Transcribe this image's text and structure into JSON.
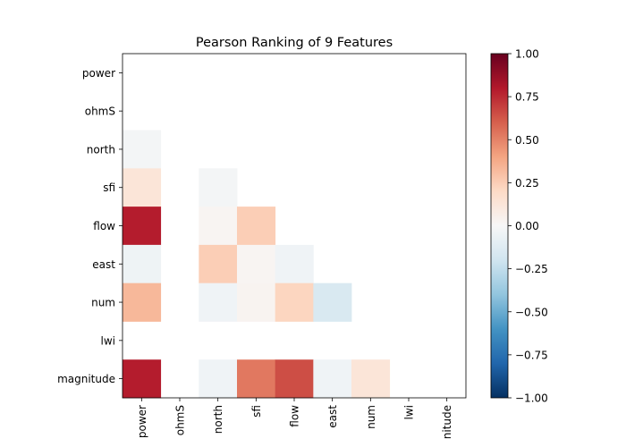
{
  "chart_data": {
    "type": "heatmap",
    "title": "Pearson Ranking of 9 Features",
    "features": [
      "power",
      "ohmS",
      "north",
      "sfi",
      "flow",
      "east",
      "num",
      "lwi",
      "magnitude"
    ],
    "x_tick_labels": [
      "power",
      "ohmS",
      "north",
      "sfi",
      "flow",
      "east",
      "num",
      "lwi",
      "nitude"
    ],
    "matrix": [
      [
        null,
        null,
        null,
        null,
        null,
        null,
        null,
        null,
        null
      ],
      [
        null,
        null,
        null,
        null,
        null,
        null,
        null,
        null,
        null
      ],
      [
        -0.02,
        null,
        null,
        null,
        null,
        null,
        null,
        null,
        null
      ],
      [
        0.13,
        null,
        -0.02,
        null,
        null,
        null,
        null,
        null,
        null
      ],
      [
        0.79,
        null,
        0.02,
        0.25,
        null,
        null,
        null,
        null,
        null
      ],
      [
        -0.05,
        null,
        0.25,
        0.02,
        -0.04,
        null,
        null,
        null,
        null
      ],
      [
        0.33,
        null,
        -0.04,
        0.03,
        0.22,
        -0.16,
        null,
        null,
        null
      ],
      [
        null,
        null,
        null,
        null,
        null,
        null,
        null,
        null,
        null
      ],
      [
        0.79,
        null,
        -0.04,
        0.53,
        0.65,
        -0.04,
        0.13,
        null,
        null
      ]
    ],
    "colormap": "RdBu_r",
    "vmin": -1.0,
    "vmax": 1.0,
    "colorbar_ticks": [
      1.0,
      0.75,
      0.5,
      0.25,
      0.0,
      -0.25,
      -0.5,
      -0.75,
      -1.0
    ],
    "colorbar_tick_labels": [
      "1.00",
      "0.75",
      "0.50",
      "0.25",
      "0.00",
      "−0.25",
      "−0.50",
      "−0.75",
      "−1.00"
    ]
  }
}
